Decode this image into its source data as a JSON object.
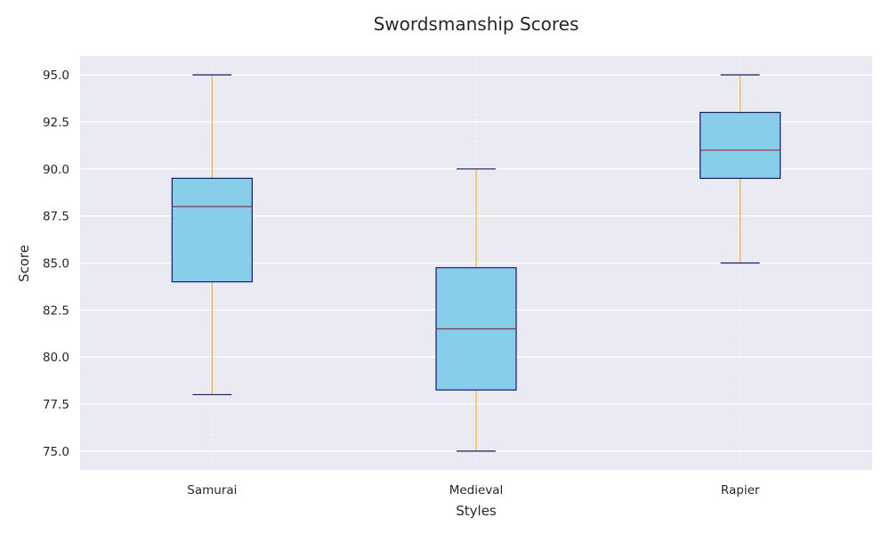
{
  "chart_data": {
    "type": "box",
    "title": "Swordsmanship Scores",
    "xlabel": "Styles",
    "ylabel": "Score",
    "ylim": [
      74.0,
      96.0
    ],
    "yticks": [
      "75.0",
      "77.5",
      "80.0",
      "82.5",
      "85.0",
      "87.5",
      "90.0",
      "92.5",
      "95.0"
    ],
    "grid": true,
    "categories": [
      "Samurai",
      "Medieval",
      "Rapier"
    ],
    "boxes": [
      {
        "category": "Samurai",
        "whisker_low": 78.0,
        "q1": 84.0,
        "median": 88.0,
        "q3": 89.5,
        "whisker_high": 95.0
      },
      {
        "category": "Medieval",
        "whisker_low": 75.0,
        "q1": 78.25,
        "median": 81.5,
        "q3": 84.75,
        "whisker_high": 90.0
      },
      {
        "category": "Rapier",
        "whisker_low": 85.0,
        "q1": 89.5,
        "median": 91.0,
        "q3": 93.0,
        "whisker_high": 95.0
      }
    ],
    "colors": {
      "plot_background": "#eaeaf2",
      "grid": "#ffffff",
      "box_fill": "#87ceeb",
      "box_edge": "#191970",
      "median": "#a52a2a",
      "whisker": "#ffa500",
      "cap": "#191970"
    }
  }
}
